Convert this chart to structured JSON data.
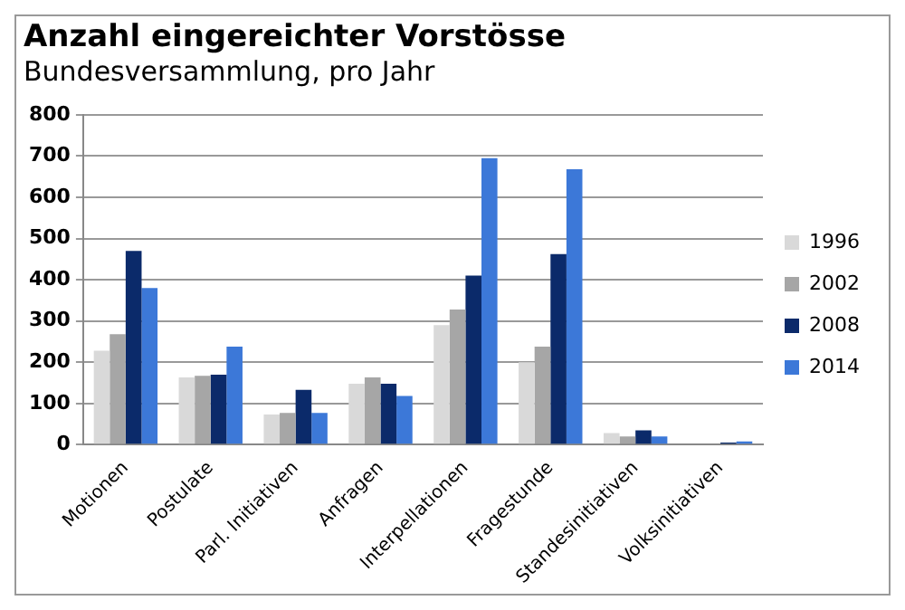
{
  "chart_data": {
    "type": "bar",
    "title": "Anzahl eingereichter Vorstösse",
    "subtitle": "Bundesversammlung, pro Jahr",
    "categories": [
      "Motionen",
      "Postulate",
      "Parl. Initiativen",
      "Anfragen",
      "Interpellationen",
      "Fragestunde",
      "Standesinitiativen",
      "Volksinitiativen"
    ],
    "series": [
      {
        "name": "1996",
        "color": "#d9d9d9",
        "values": [
          228,
          163,
          73,
          148,
          290,
          200,
          28,
          0
        ]
      },
      {
        "name": "2002",
        "color": "#a6a6a6",
        "values": [
          268,
          167,
          77,
          163,
          328,
          238,
          20,
          0
        ]
      },
      {
        "name": "2008",
        "color": "#0b2a6a",
        "values": [
          470,
          170,
          133,
          148,
          410,
          462,
          35,
          5
        ]
      },
      {
        "name": "2014",
        "color": "#3c78d8",
        "values": [
          380,
          238,
          77,
          118,
          695,
          668,
          20,
          8
        ]
      }
    ],
    "ylim": [
      0,
      800
    ],
    "yticks": [
      0,
      100,
      200,
      300,
      400,
      500,
      600,
      700,
      800
    ],
    "grid": "y",
    "legend": "right"
  }
}
